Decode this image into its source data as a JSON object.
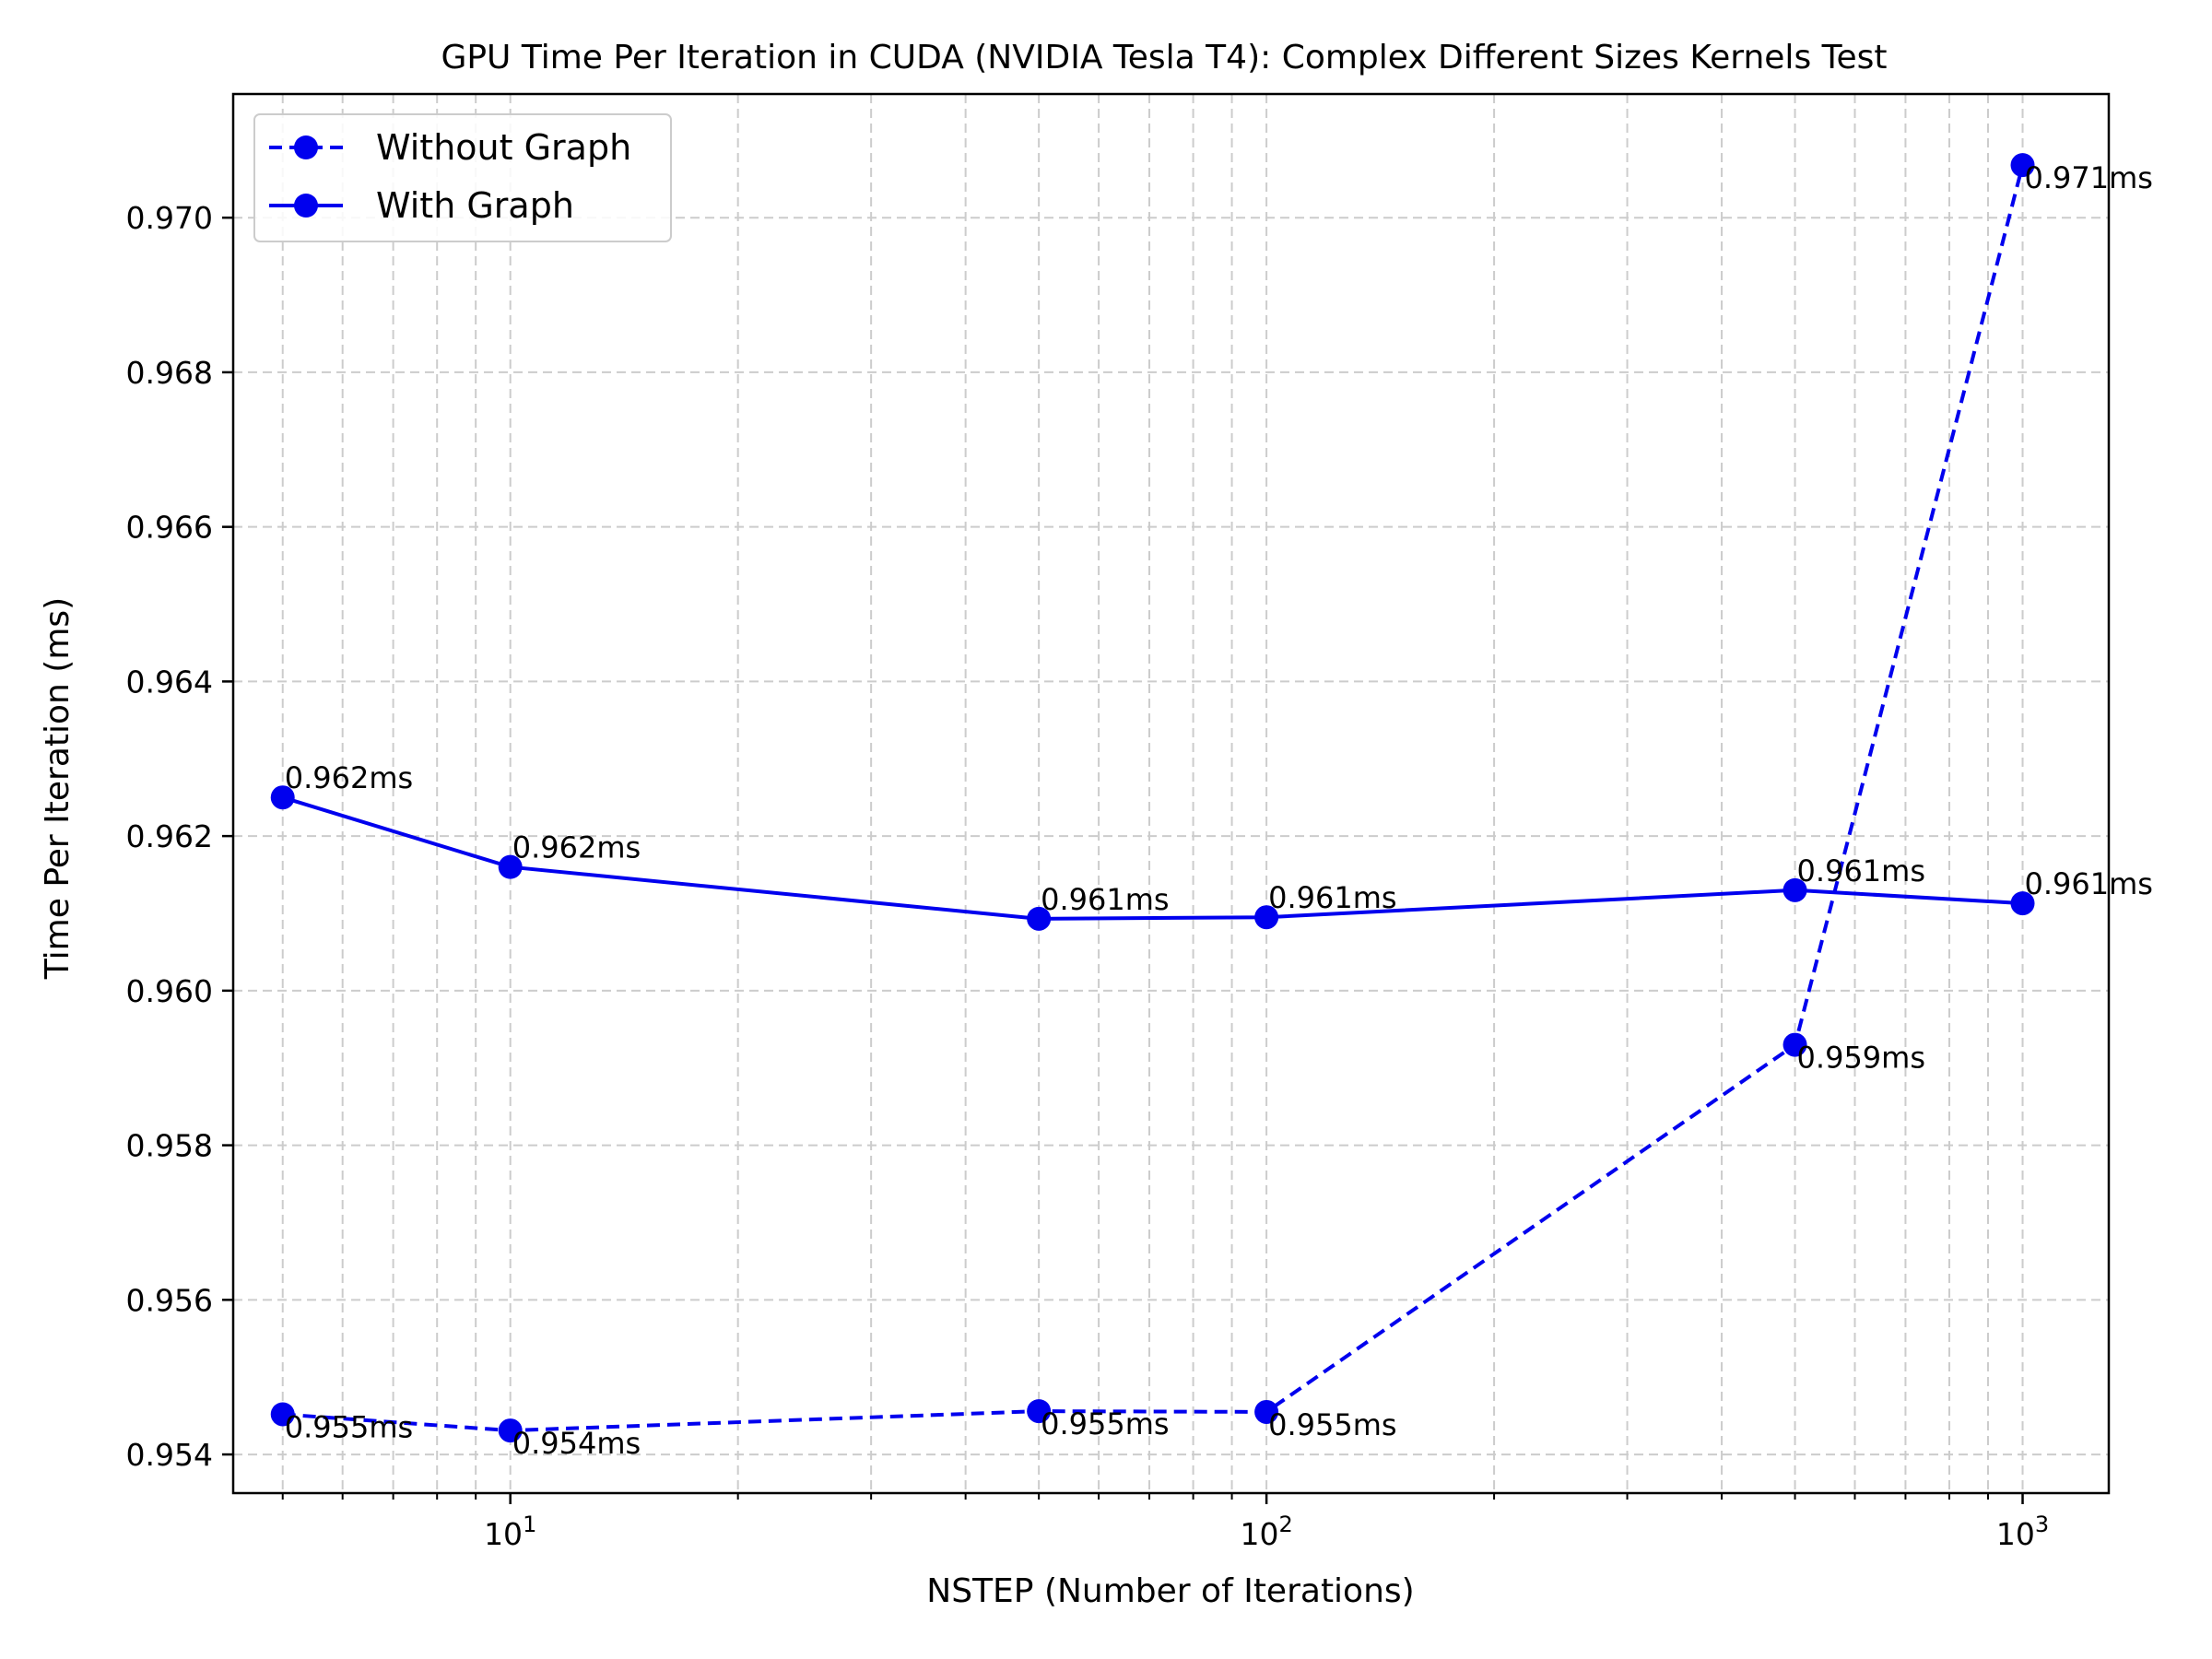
{
  "chart_data": {
    "type": "line",
    "title": "GPU Time Per Iteration in CUDA (NVIDIA Tesla T4): Complex Different Sizes Kernels Test",
    "xlabel": "NSTEP (Number of Iterations)",
    "ylabel": "Time Per Iteration (ms)",
    "xscale": "log",
    "xlim": [
      4.3,
      1300
    ],
    "ylim": [
      0.9535,
      0.9716
    ],
    "xtick_labels": [
      {
        "base": "10",
        "exp": "1"
      },
      {
        "base": "10",
        "exp": "2"
      },
      {
        "base": "10",
        "exp": "3"
      }
    ],
    "yticks": [
      "0.954",
      "0.956",
      "0.958",
      "0.960",
      "0.962",
      "0.964",
      "0.966",
      "0.968",
      "0.970"
    ],
    "grid": true,
    "legend_position": "top-left",
    "x": [
      5,
      10,
      50,
      100,
      500,
      1000
    ],
    "series": [
      {
        "name": "Without Graph",
        "style": "dashed",
        "color": "#0000ee",
        "values": [
          0.95452,
          0.95431,
          0.95456,
          0.95455,
          0.9593,
          0.97068
        ],
        "labels": [
          "0.955ms",
          "0.954ms",
          "0.955ms",
          "0.955ms",
          "0.959ms",
          "0.971ms"
        ]
      },
      {
        "name": "With Graph",
        "style": "solid",
        "color": "#0000ee",
        "values": [
          0.9625,
          0.9616,
          0.96093,
          0.96095,
          0.9613,
          0.96113
        ],
        "labels": [
          "0.962ms",
          "0.962ms",
          "0.961ms",
          "0.961ms",
          "0.961ms",
          "0.961ms"
        ]
      }
    ]
  }
}
